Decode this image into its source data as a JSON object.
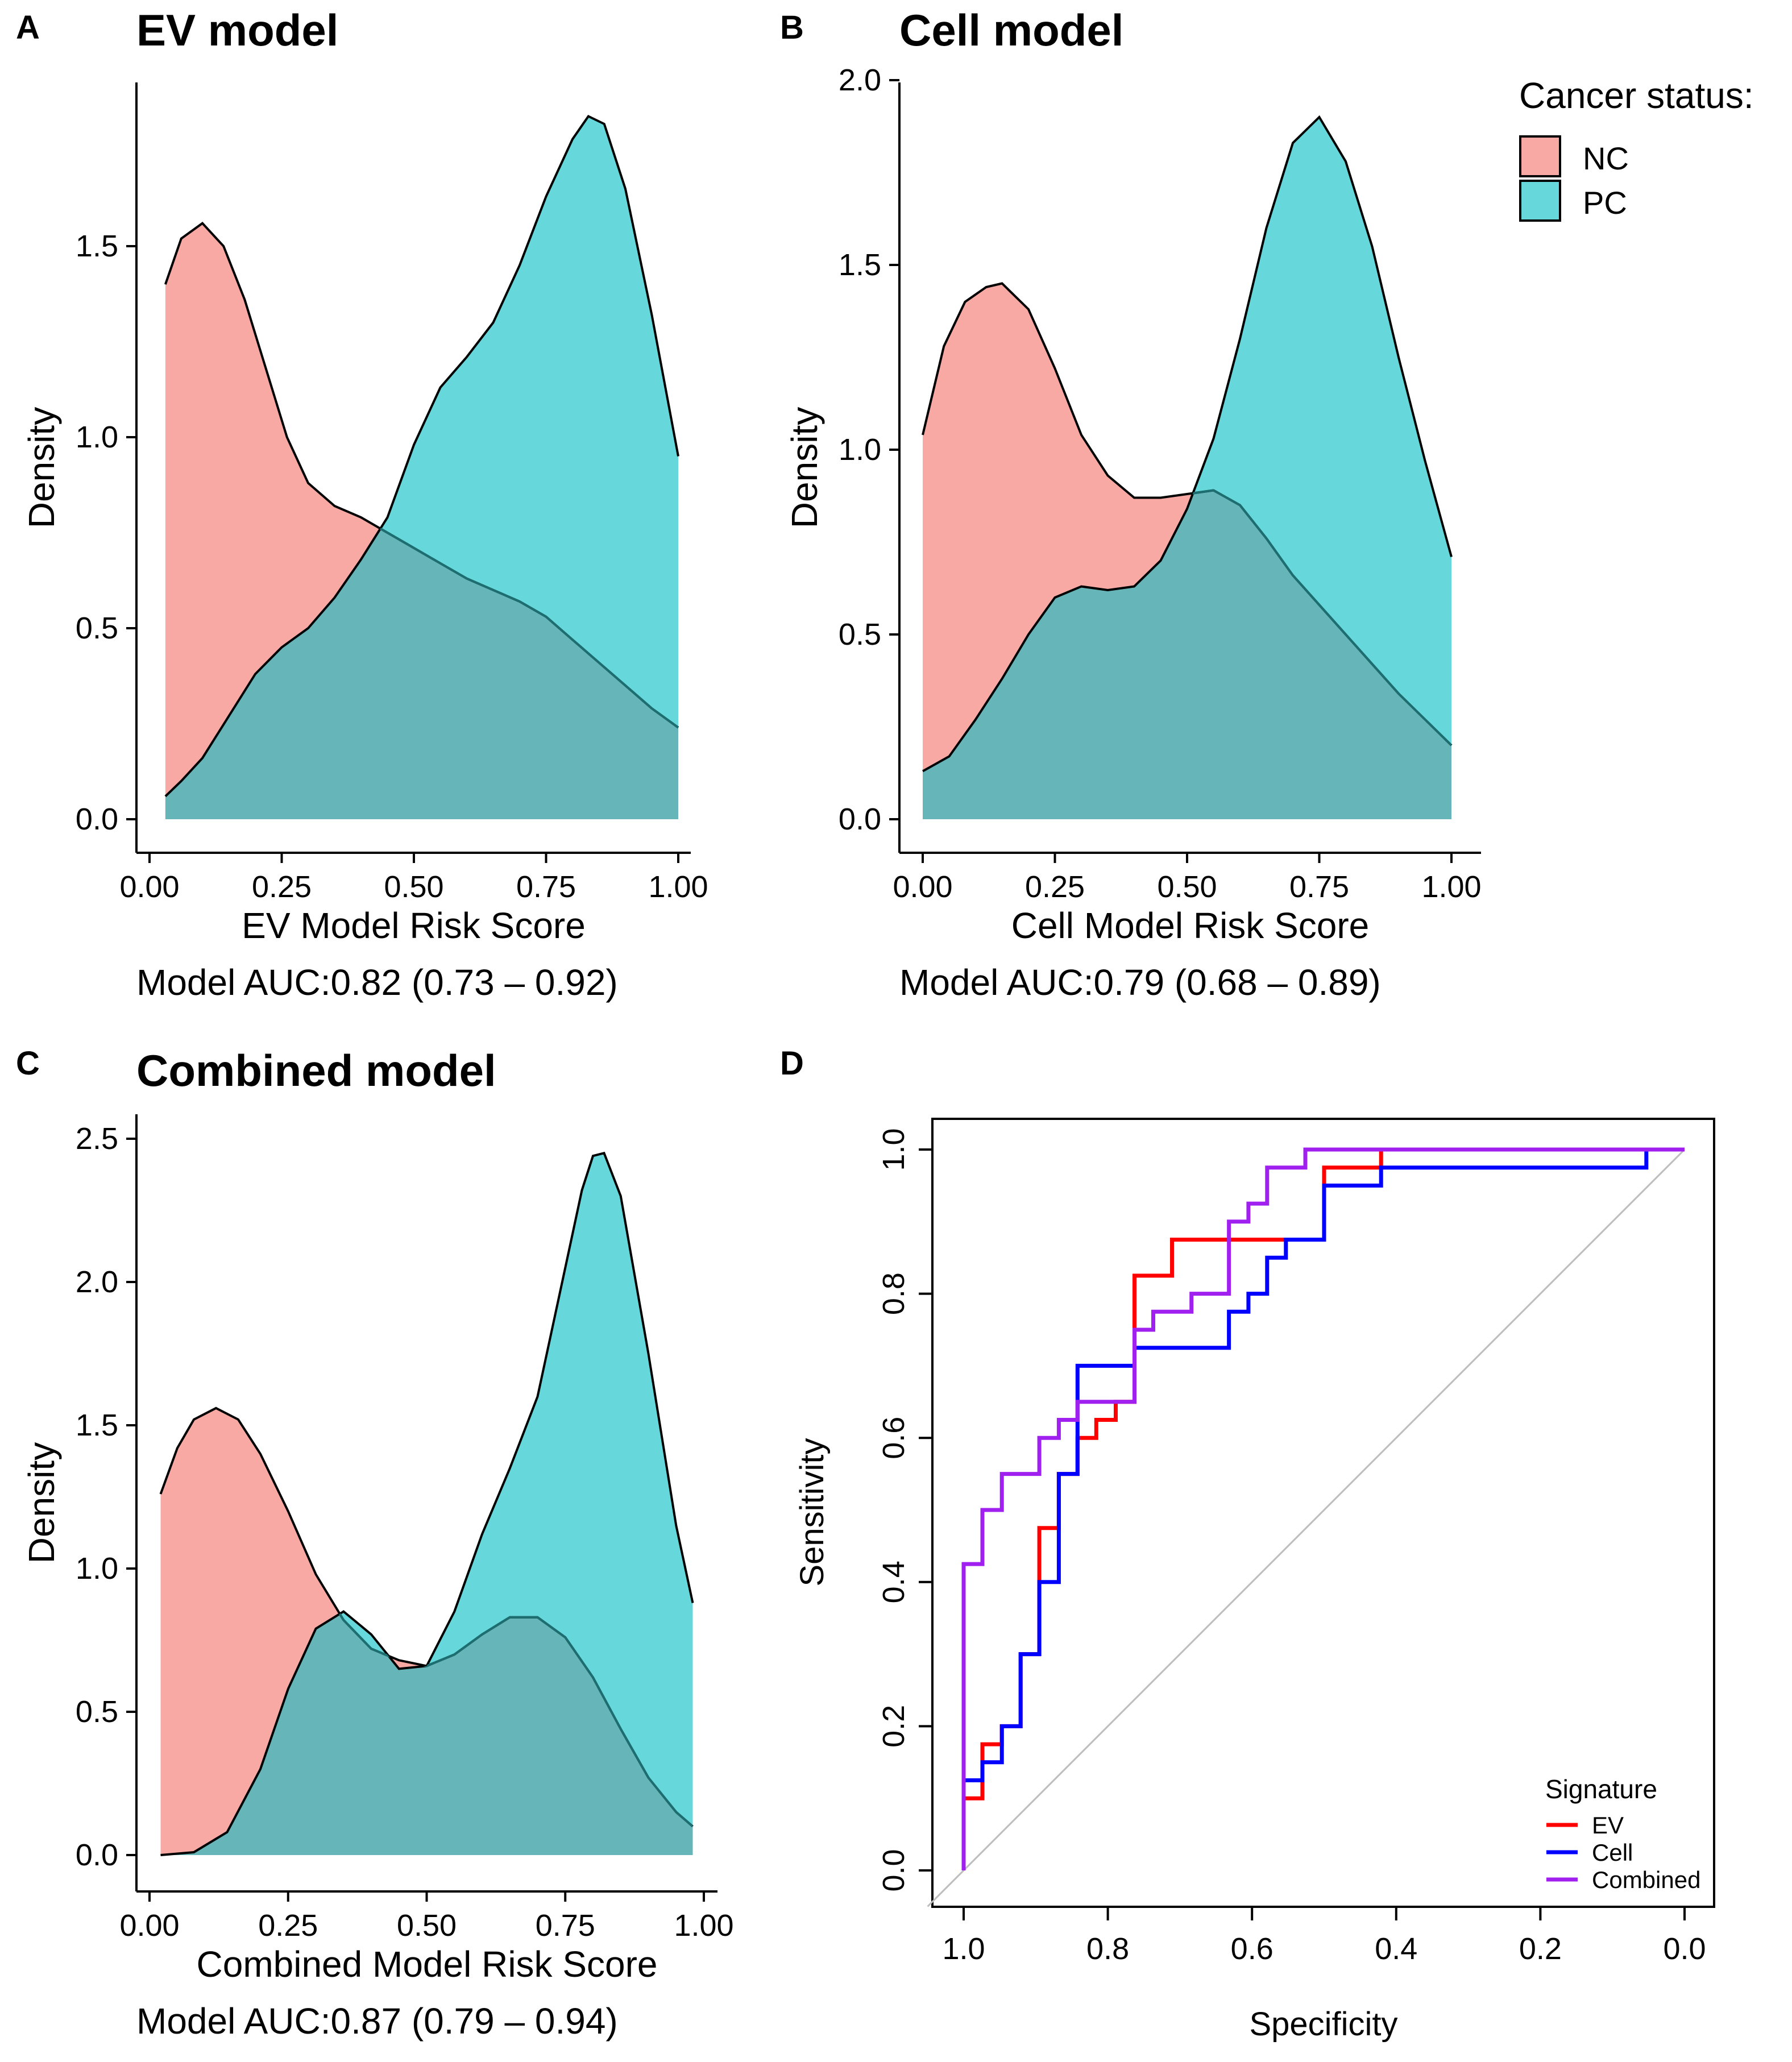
{
  "figure": {
    "panelA": {
      "letter": "A",
      "title": "EV model"
    },
    "panelB": {
      "letter": "B",
      "title": "Cell model"
    },
    "panelC": {
      "letter": "C",
      "title": "Combined model"
    },
    "panelD": {
      "letter": "D"
    }
  },
  "colors": {
    "nc_fill": "#F8A9A3",
    "pc_fill": "#66D8DB",
    "overlap_fill": "#66B5B9",
    "pc_overlap_outline": "#1C6E70",
    "roc_ev": "#FF0000",
    "roc_cell": "#0000FF",
    "roc_combined": "#A020F0",
    "diagonal": "#BDBDBD"
  },
  "chart_data": [
    {
      "type": "area",
      "id": "A",
      "title": "EV model",
      "xlabel": "EV Model Risk Score",
      "ylabel": "Density",
      "caption": "Model AUC:0.82 (0.73 – 0.92)",
      "xlim": [
        0,
        1
      ],
      "ylim": [
        0,
        1.85
      ],
      "xticks": [
        0,
        0.25,
        0.5,
        0.75,
        1
      ],
      "xtick_labels": [
        "0.00",
        "0.25",
        "0.50",
        "0.75",
        "1.00"
      ],
      "yticks": [
        0,
        0.5,
        1,
        1.5
      ],
      "ytick_labels": [
        "0.0",
        "0.5",
        "1.0",
        "1.5"
      ],
      "legend_title": "Cancer status:",
      "series": [
        {
          "name": "NC",
          "x": [
            0.03,
            0.06,
            0.1,
            0.14,
            0.18,
            0.22,
            0.26,
            0.3,
            0.35,
            0.4,
            0.45,
            0.5,
            0.55,
            0.6,
            0.65,
            0.7,
            0.75,
            0.8,
            0.85,
            0.9,
            0.95,
            1.0
          ],
          "y": [
            1.4,
            1.52,
            1.56,
            1.5,
            1.36,
            1.18,
            1.0,
            0.88,
            0.82,
            0.79,
            0.75,
            0.71,
            0.67,
            0.63,
            0.6,
            0.57,
            0.53,
            0.47,
            0.41,
            0.35,
            0.29,
            0.24
          ]
        },
        {
          "name": "PC",
          "x": [
            0.03,
            0.06,
            0.1,
            0.15,
            0.2,
            0.25,
            0.3,
            0.35,
            0.4,
            0.45,
            0.5,
            0.55,
            0.6,
            0.65,
            0.7,
            0.75,
            0.8,
            0.83,
            0.86,
            0.9,
            0.95,
            1.0
          ],
          "y": [
            0.06,
            0.1,
            0.16,
            0.27,
            0.38,
            0.45,
            0.5,
            0.58,
            0.68,
            0.79,
            0.98,
            1.13,
            1.21,
            1.3,
            1.45,
            1.63,
            1.78,
            1.84,
            1.82,
            1.65,
            1.32,
            0.95
          ]
        }
      ]
    },
    {
      "type": "area",
      "id": "B",
      "title": "Cell model",
      "xlabel": "Cell Model Risk Score",
      "ylabel": "Density",
      "caption": "Model AUC:0.79 (0.68 – 0.89)",
      "xlim": [
        0,
        1
      ],
      "ylim": [
        0,
        2.0
      ],
      "xticks": [
        0,
        0.25,
        0.5,
        0.75,
        1
      ],
      "xtick_labels": [
        "0.00",
        "0.25",
        "0.50",
        "0.75",
        "1.00"
      ],
      "yticks": [
        0,
        0.5,
        1,
        1.5,
        2
      ],
      "ytick_labels": [
        "0.0",
        "0.5",
        "1.0",
        "1.5",
        "2.0"
      ],
      "legend_title": "Cancer status:",
      "series": [
        {
          "name": "NC",
          "x": [
            0.0,
            0.04,
            0.08,
            0.12,
            0.15,
            0.2,
            0.25,
            0.3,
            0.35,
            0.4,
            0.45,
            0.5,
            0.55,
            0.6,
            0.65,
            0.7,
            0.75,
            0.8,
            0.85,
            0.9,
            0.95,
            1.0
          ],
          "y": [
            1.04,
            1.28,
            1.4,
            1.44,
            1.45,
            1.38,
            1.22,
            1.04,
            0.93,
            0.87,
            0.87,
            0.88,
            0.89,
            0.85,
            0.76,
            0.66,
            0.58,
            0.5,
            0.42,
            0.34,
            0.27,
            0.2
          ]
        },
        {
          "name": "PC",
          "x": [
            0.0,
            0.05,
            0.1,
            0.15,
            0.2,
            0.25,
            0.3,
            0.35,
            0.4,
            0.45,
            0.5,
            0.55,
            0.6,
            0.65,
            0.7,
            0.75,
            0.8,
            0.85,
            0.9,
            0.95,
            1.0
          ],
          "y": [
            0.13,
            0.17,
            0.27,
            0.38,
            0.5,
            0.6,
            0.63,
            0.62,
            0.63,
            0.7,
            0.84,
            1.03,
            1.3,
            1.6,
            1.83,
            1.9,
            1.78,
            1.55,
            1.25,
            0.97,
            0.71
          ]
        }
      ]
    },
    {
      "type": "area",
      "id": "C",
      "title": "Combined model",
      "xlabel": "Combined Model Risk Score",
      "ylabel": "Density",
      "caption": "Model AUC:0.87 (0.79 – 0.94)",
      "xlim": [
        0,
        1
      ],
      "ylim": [
        0,
        2.5
      ],
      "xticks": [
        0,
        0.25,
        0.5,
        0.75,
        1
      ],
      "xtick_labels": [
        "0.00",
        "0.25",
        "0.50",
        "0.75",
        "1.00"
      ],
      "yticks": [
        0,
        0.5,
        1,
        1.5,
        2,
        2.5
      ],
      "ytick_labels": [
        "0.0",
        "0.5",
        "1.0",
        "1.5",
        "2.0",
        "2.5"
      ],
      "series": [
        {
          "name": "NC",
          "x": [
            0.02,
            0.05,
            0.08,
            0.12,
            0.16,
            0.2,
            0.25,
            0.3,
            0.35,
            0.4,
            0.45,
            0.5,
            0.55,
            0.6,
            0.65,
            0.7,
            0.75,
            0.8,
            0.85,
            0.9,
            0.95,
            0.98
          ],
          "y": [
            1.26,
            1.42,
            1.52,
            1.56,
            1.52,
            1.4,
            1.2,
            0.98,
            0.82,
            0.72,
            0.68,
            0.66,
            0.7,
            0.77,
            0.83,
            0.83,
            0.76,
            0.62,
            0.44,
            0.27,
            0.15,
            0.1
          ]
        },
        {
          "name": "PC",
          "x": [
            0.02,
            0.08,
            0.14,
            0.2,
            0.25,
            0.3,
            0.35,
            0.4,
            0.45,
            0.5,
            0.55,
            0.6,
            0.65,
            0.7,
            0.75,
            0.78,
            0.8,
            0.82,
            0.85,
            0.9,
            0.95,
            0.98
          ],
          "y": [
            0.0,
            0.01,
            0.08,
            0.3,
            0.58,
            0.79,
            0.85,
            0.77,
            0.65,
            0.66,
            0.85,
            1.12,
            1.35,
            1.6,
            2.05,
            2.32,
            2.44,
            2.45,
            2.3,
            1.75,
            1.15,
            0.88
          ]
        }
      ]
    },
    {
      "type": "line",
      "id": "D",
      "xlabel": "Specificity",
      "ylabel": "Sensitivity",
      "xlim": [
        1.0,
        0.0
      ],
      "ylim": [
        0,
        1
      ],
      "xticks": [
        1.0,
        0.8,
        0.6,
        0.4,
        0.2,
        0.0
      ],
      "xtick_labels": [
        "1.0",
        "0.8",
        "0.6",
        "0.4",
        "0.2",
        "0.0"
      ],
      "yticks": [
        0,
        0.2,
        0.4,
        0.6,
        0.8,
        1.0
      ],
      "ytick_labels": [
        "0.0",
        "0.2",
        "0.4",
        "0.6",
        "0.8",
        "1.0"
      ],
      "legend_title": "Signature",
      "series": [
        {
          "name": "EV",
          "specificity": [
            1.0,
            1.0,
            0.974,
            0.974,
            0.947,
            0.947,
            0.921,
            0.921,
            0.895,
            0.895,
            0.868,
            0.868,
            0.842,
            0.842,
            0.816,
            0.816,
            0.789,
            0.789,
            0.763,
            0.763,
            0.711,
            0.711,
            0.5,
            0.5,
            0.421,
            0.421,
            0.0
          ],
          "sensitivity": [
            0.0,
            0.1,
            0.1,
            0.175,
            0.175,
            0.2,
            0.2,
            0.3,
            0.3,
            0.475,
            0.475,
            0.55,
            0.55,
            0.6,
            0.6,
            0.625,
            0.625,
            0.65,
            0.65,
            0.825,
            0.825,
            0.875,
            0.875,
            0.975,
            0.975,
            1.0,
            1.0
          ]
        },
        {
          "name": "Cell",
          "specificity": [
            1.0,
            1.0,
            0.974,
            0.974,
            0.947,
            0.947,
            0.921,
            0.921,
            0.895,
            0.895,
            0.868,
            0.868,
            0.842,
            0.842,
            0.763,
            0.763,
            0.632,
            0.632,
            0.605,
            0.605,
            0.579,
            0.579,
            0.553,
            0.553,
            0.5,
            0.5,
            0.421,
            0.421,
            0.053,
            0.053,
            0.0
          ],
          "sensitivity": [
            0.0,
            0.125,
            0.125,
            0.15,
            0.15,
            0.2,
            0.2,
            0.3,
            0.3,
            0.4,
            0.4,
            0.55,
            0.55,
            0.7,
            0.7,
            0.725,
            0.725,
            0.775,
            0.775,
            0.8,
            0.8,
            0.85,
            0.85,
            0.875,
            0.875,
            0.95,
            0.95,
            0.975,
            0.975,
            1.0,
            1.0
          ]
        },
        {
          "name": "Combined",
          "specificity": [
            1.0,
            1.0,
            0.974,
            0.974,
            0.947,
            0.947,
            0.895,
            0.895,
            0.868,
            0.868,
            0.842,
            0.842,
            0.763,
            0.763,
            0.737,
            0.737,
            0.684,
            0.684,
            0.632,
            0.632,
            0.605,
            0.605,
            0.579,
            0.579,
            0.526,
            0.526,
            0.0
          ],
          "sensitivity": [
            0.0,
            0.425,
            0.425,
            0.5,
            0.5,
            0.55,
            0.55,
            0.6,
            0.6,
            0.625,
            0.625,
            0.65,
            0.65,
            0.75,
            0.75,
            0.775,
            0.775,
            0.8,
            0.8,
            0.9,
            0.9,
            0.925,
            0.925,
            0.975,
            0.975,
            1.0,
            1.0
          ]
        }
      ]
    }
  ]
}
